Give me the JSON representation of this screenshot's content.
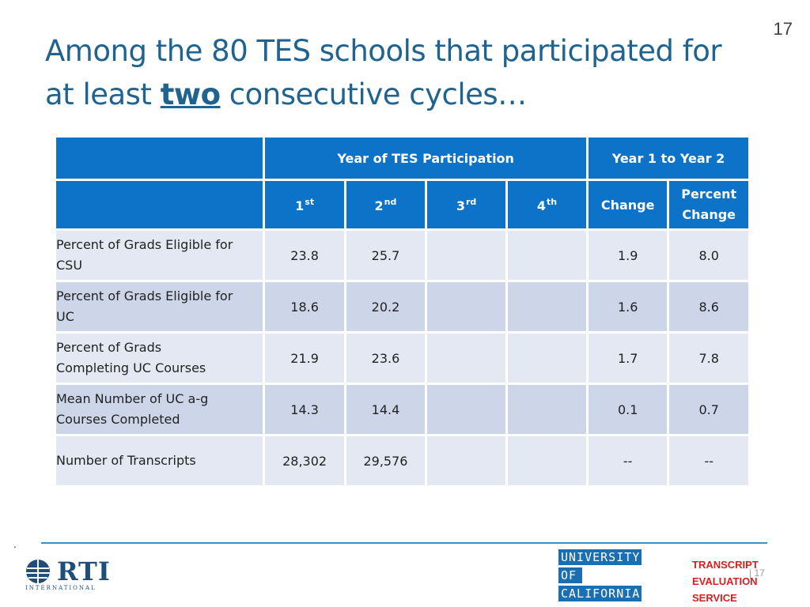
{
  "slide_number": "17",
  "title": {
    "line1": "Among the 80 TES schools that participated for",
    "line2_pre": "at least ",
    "line2_emph": "two",
    "line2_post": " consecutive cycles…"
  },
  "table": {
    "group_headers": {
      "year_of_participation": "Year of TES Participation",
      "year1_to_year2": "Year 1 to Year 2"
    },
    "columns": [
      {
        "base": "1",
        "sup": "st"
      },
      {
        "base": "2",
        "sup": "nd"
      },
      {
        "base": "3",
        "sup": "rd"
      },
      {
        "base": "4",
        "sup": "th"
      }
    ],
    "change_header": "Change",
    "percent_change_header": {
      "line1": "Percent",
      "line2": "Change"
    },
    "rows": [
      {
        "label": [
          "Percent of Grads Eligible for",
          "CSU"
        ],
        "v1": "23.8",
        "v2": "25.7",
        "v3": "",
        "v4": "",
        "change": "1.9",
        "pct": "8.0"
      },
      {
        "label": [
          "Percent of Grads Eligible for",
          "UC"
        ],
        "v1": "18.6",
        "v2": "20.2",
        "v3": "",
        "v4": "",
        "change": "1.6",
        "pct": "8.6"
      },
      {
        "label": [
          "Percent of Grads",
          "Completing UC Courses"
        ],
        "v1": "21.9",
        "v2": "23.6",
        "v3": "",
        "v4": "",
        "change": "1.7",
        "pct": "7.8"
      },
      {
        "label": [
          "Mean Number of UC a-g",
          "Courses Completed"
        ],
        "v1": "14.3",
        "v2": "14.4",
        "v3": "",
        "v4": "",
        "change": "0.1",
        "pct": "0.7"
      },
      {
        "label": [
          "Number of Transcripts"
        ],
        "v1": "28,302",
        "v2": "29,576",
        "v3": "",
        "v4": "",
        "change": "--",
        "pct": "--"
      }
    ]
  },
  "footer": {
    "stray_mark": ".",
    "rti": {
      "word": "RTI",
      "tagline": "INTERNATIONAL"
    },
    "uc": {
      "line1": "UNIVERSITY",
      "line2": "OF",
      "line3": "CALIFORNIA"
    },
    "tes": {
      "line1": "TRANSCRIPT",
      "line2": "EVALUATION",
      "line3": "SERVICE"
    },
    "page_number": "| 17"
  },
  "colors": {
    "title": "#1f6391",
    "header_fill": "#0d73c9",
    "row_light": "#e3e8f2",
    "row_dark": "#cdd6e8",
    "footer_rule": "#3b8fc2",
    "tes_red": "#d62020"
  }
}
